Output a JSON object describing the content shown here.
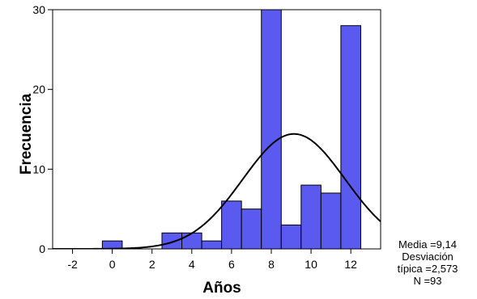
{
  "chart_data": {
    "type": "bar",
    "subtype": "histogram",
    "xlabel": "Años",
    "ylabel": "Frecuencia",
    "xlim": [
      -3,
      13.5
    ],
    "ylim": [
      0,
      30
    ],
    "x_ticks": [
      -2,
      0,
      2,
      4,
      6,
      8,
      10,
      12
    ],
    "x_tick_labels": [
      "-2",
      "0",
      "2",
      "4",
      "6",
      "8",
      "10",
      "12"
    ],
    "y_ticks": [
      0,
      10,
      20,
      30
    ],
    "y_tick_labels": [
      "0",
      "10",
      "20",
      "30"
    ],
    "bin_width": 1,
    "bins": [
      {
        "x0": -0.5,
        "x1": 0.5,
        "count": 1
      },
      {
        "x0": 2.5,
        "x1": 3.5,
        "count": 2
      },
      {
        "x0": 3.5,
        "x1": 4.5,
        "count": 2
      },
      {
        "x0": 4.5,
        "x1": 5.5,
        "count": 1
      },
      {
        "x0": 5.5,
        "x1": 6.5,
        "count": 6
      },
      {
        "x0": 6.5,
        "x1": 7.5,
        "count": 5
      },
      {
        "x0": 7.5,
        "x1": 8.5,
        "count": 30
      },
      {
        "x0": 8.5,
        "x1": 9.5,
        "count": 3
      },
      {
        "x0": 9.5,
        "x1": 10.5,
        "count": 8
      },
      {
        "x0": 10.5,
        "x1": 11.5,
        "count": 7
      },
      {
        "x0": 11.5,
        "x1": 12.5,
        "count": 28
      }
    ],
    "normal_curve": {
      "mean": 9.14,
      "sd": 2.573,
      "n": 93
    },
    "bar_color": "#5A5AF0",
    "bar_edge_color": "#000000",
    "curve_color": "#000000",
    "grid": false,
    "legend": null,
    "stats_box": {
      "lines": [
        "Media =9,14",
        "Desviación",
        "típica =2,573",
        "N =93"
      ],
      "placement": "bottom-right"
    }
  }
}
